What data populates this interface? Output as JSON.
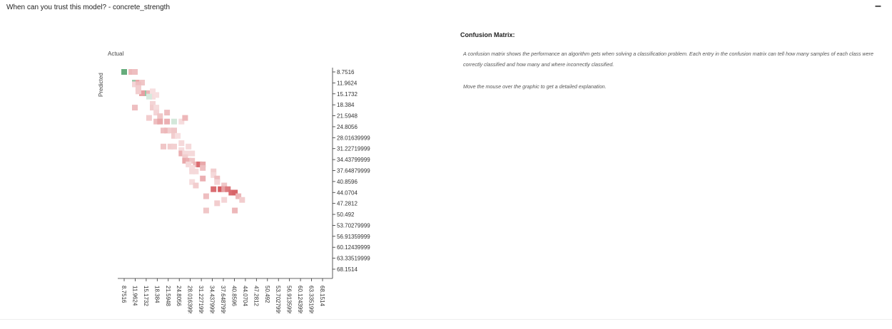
{
  "app": {
    "title": "When can you trust this model? - concrete_strength",
    "collapse_label": "–"
  },
  "info": {
    "heading": "Confusion Matrix:",
    "description": "A confusion matrix shows the performance an algorithm gets when solving a classification problem. Each entry in the confusion matrix can tell how many samples of each class were correctly classified and how many and where incorrectly classified.",
    "hint": "Move the mouse over the graphic to get a detailed explanation."
  },
  "colors": {
    "diagonal": "#4f9f68",
    "off_diagonal": "#d4565b"
  },
  "chart_data": {
    "type": "heatmap",
    "title": "",
    "xlabel": "Actual",
    "ylabel": "Predicted",
    "x_ticks": [
      "8.7516",
      "11.9624",
      "15.1732",
      "18.384",
      "21.5948",
      "24.8056",
      "28.01639999",
      "31.22719999",
      "34.43799999",
      "37.64879999",
      "40.8596",
      "44.0704",
      "47.2812",
      "50.492",
      "53.70279999",
      "56.91359999",
      "60.12439999",
      "63.33519999",
      "68.1514"
    ],
    "y_ticks": [
      "8.7516",
      "11.9624",
      "15.1732",
      "18.384",
      "21.5948",
      "24.8056",
      "28.01639999",
      "31.22719999",
      "34.43799999",
      "37.64879999",
      "40.8596",
      "44.0704",
      "47.2812",
      "50.492",
      "53.70279999",
      "56.91359999",
      "60.12439999",
      "63.33519999",
      "68.1514"
    ],
    "grid": false,
    "cells": [
      {
        "x": 8.7516,
        "y": 8.7516,
        "v": 0.85
      },
      {
        "x": 10.9,
        "y": 8.7516,
        "v": 0.35
      },
      {
        "x": 11.9624,
        "y": 8.7516,
        "v": 0.3
      },
      {
        "x": 11.9624,
        "y": 11.9624,
        "v": 0.5
      },
      {
        "x": 13.0,
        "y": 11.9624,
        "v": 0.45
      },
      {
        "x": 14.1,
        "y": 11.9624,
        "v": 0.25
      },
      {
        "x": 11.9624,
        "y": 12.5,
        "v": 0.15
      },
      {
        "x": 13.0,
        "y": 12.5,
        "v": 0.3
      },
      {
        "x": 13.0,
        "y": 13.6,
        "v": 0.2
      },
      {
        "x": 15.1732,
        "y": 15.1732,
        "v": 0.55
      },
      {
        "x": 14.1,
        "y": 15.1732,
        "v": 0.5
      },
      {
        "x": 16.2,
        "y": 15.1732,
        "v": 0.35
      },
      {
        "x": 13.0,
        "y": 14.6,
        "v": 0.2
      },
      {
        "x": 17.3,
        "y": 14.6,
        "v": 0.08
      },
      {
        "x": 17.3,
        "y": 18.384,
        "v": 0.15
      },
      {
        "x": 17.3,
        "y": 16.2,
        "v": 0.1
      },
      {
        "x": 18.384,
        "y": 15.7,
        "v": 0.08
      },
      {
        "x": 16.2,
        "y": 16.2,
        "v": 0.12
      },
      {
        "x": 11.9624,
        "y": 19.5,
        "v": 0.3
      },
      {
        "x": 17.3,
        "y": 19.5,
        "v": 0.2
      },
      {
        "x": 18.384,
        "y": 19.5,
        "v": 0.1
      },
      {
        "x": 18.384,
        "y": 21.0,
        "v": 0.15
      },
      {
        "x": 21.5948,
        "y": 21.0,
        "v": 0.3
      },
      {
        "x": 19.5,
        "y": 22.1,
        "v": 0.25
      },
      {
        "x": 16.2,
        "y": 22.6,
        "v": 0.2
      },
      {
        "x": 18.384,
        "y": 23.7,
        "v": 0.3
      },
      {
        "x": 19.5,
        "y": 23.7,
        "v": 0.45
      },
      {
        "x": 21.5948,
        "y": 23.7,
        "v": 0.4
      },
      {
        "x": 23.7,
        "y": 23.7,
        "v": 0.15
      },
      {
        "x": 25.9,
        "y": 23.7,
        "v": 0.1
      },
      {
        "x": 27.0,
        "y": 22.6,
        "v": 0.35
      },
      {
        "x": 20.5,
        "y": 26.4,
        "v": 0.3
      },
      {
        "x": 21.5948,
        "y": 26.4,
        "v": 0.35
      },
      {
        "x": 22.6,
        "y": 26.4,
        "v": 0.2
      },
      {
        "x": 23.7,
        "y": 26.4,
        "v": 0.25
      },
      {
        "x": 23.7,
        "y": 28.01639999,
        "v": 0.2
      },
      {
        "x": 24.8056,
        "y": 28.01639999,
        "v": 0.08
      },
      {
        "x": 25.9,
        "y": 30.2,
        "v": 0.12
      },
      {
        "x": 20.5,
        "y": 31.22719999,
        "v": 0.25
      },
      {
        "x": 22.6,
        "y": 31.22719999,
        "v": 0.2
      },
      {
        "x": 23.7,
        "y": 31.22719999,
        "v": 0.18
      },
      {
        "x": 28.01639999,
        "y": 31.22719999,
        "v": 0.12
      },
      {
        "x": 25.9,
        "y": 32.3,
        "v": 0.1
      },
      {
        "x": 25.9,
        "y": 33.3,
        "v": 0.4
      },
      {
        "x": 27.0,
        "y": 33.3,
        "v": 0.12
      },
      {
        "x": 28.01639999,
        "y": 33.3,
        "v": 0.12
      },
      {
        "x": 29.1,
        "y": 33.3,
        "v": 0.12
      },
      {
        "x": 27.0,
        "y": 34.43799999,
        "v": 0.2
      },
      {
        "x": 27.0,
        "y": 35.5,
        "v": 0.45
      },
      {
        "x": 28.01639999,
        "y": 35.5,
        "v": 0.4
      },
      {
        "x": 29.1,
        "y": 35.5,
        "v": 0.25
      },
      {
        "x": 28.01639999,
        "y": 36.6,
        "v": 0.12
      },
      {
        "x": 30.2,
        "y": 36.6,
        "v": 0.35
      },
      {
        "x": 31.22719999,
        "y": 36.6,
        "v": 0.85
      },
      {
        "x": 32.3,
        "y": 36.6,
        "v": 0.45
      },
      {
        "x": 29.1,
        "y": 37.64879999,
        "v": 0.1
      },
      {
        "x": 32.3,
        "y": 37.64879999,
        "v": 0.3
      },
      {
        "x": 29.1,
        "y": 38.7,
        "v": 0.12
      },
      {
        "x": 30.2,
        "y": 38.7,
        "v": 0.12
      },
      {
        "x": 35.5,
        "y": 38.7,
        "v": 0.2
      },
      {
        "x": 35.5,
        "y": 39.8,
        "v": 0.12
      },
      {
        "x": 32.3,
        "y": 40.8596,
        "v": 0.4
      },
      {
        "x": 36.6,
        "y": 40.8596,
        "v": 0.3
      },
      {
        "x": 29.1,
        "y": 41.9,
        "v": 0.1
      },
      {
        "x": 36.6,
        "y": 41.9,
        "v": 0.15
      },
      {
        "x": 30.2,
        "y": 42.95,
        "v": 0.2
      },
      {
        "x": 38.7,
        "y": 42.95,
        "v": 0.25
      },
      {
        "x": 35.5,
        "y": 44.0704,
        "v": 0.85
      },
      {
        "x": 37.64879999,
        "y": 44.0704,
        "v": 0.95
      },
      {
        "x": 38.7,
        "y": 44.0704,
        "v": 0.5
      },
      {
        "x": 39.8,
        "y": 44.0704,
        "v": 0.75
      },
      {
        "x": 40.8596,
        "y": 45.1,
        "v": 0.85
      },
      {
        "x": 41.9,
        "y": 45.1,
        "v": 0.9
      },
      {
        "x": 33.3,
        "y": 46.2,
        "v": 0.3
      },
      {
        "x": 42.95,
        "y": 46.2,
        "v": 0.35
      },
      {
        "x": 44.0704,
        "y": 47.2812,
        "v": 0.2
      },
      {
        "x": 36.6,
        "y": 48.3,
        "v": 0.2
      },
      {
        "x": 38.7,
        "y": 47.2812,
        "v": 0.15
      },
      {
        "x": 33.3,
        "y": 50.492,
        "v": 0.25
      },
      {
        "x": 41.9,
        "y": 50.492,
        "v": 0.35
      }
    ]
  }
}
